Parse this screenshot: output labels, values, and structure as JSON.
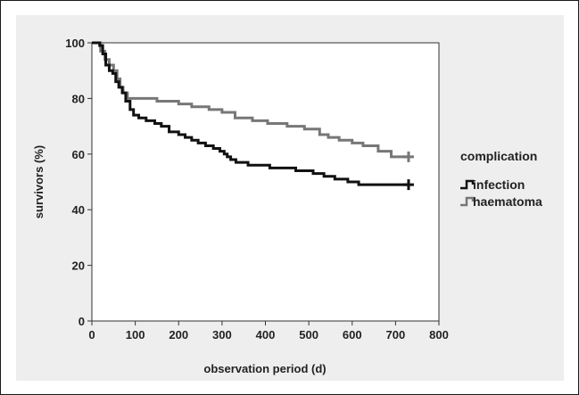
{
  "chart_data": {
    "type": "line",
    "subtype": "kaplan-meier step",
    "title": "",
    "xlabel": "observation period (d)",
    "ylabel": "survivors (%)",
    "xlim": [
      0,
      800
    ],
    "ylim": [
      0,
      100
    ],
    "xticks": [
      "0",
      "100",
      "200",
      "300",
      "400",
      "500",
      "600",
      "700",
      "800"
    ],
    "yticks": [
      "0",
      "20",
      "40",
      "60",
      "80",
      "100"
    ],
    "grid": false,
    "legend": {
      "title": "complication",
      "position": "right"
    },
    "series": [
      {
        "name": "infection",
        "color": "#111111",
        "censor_marker": "plus",
        "points": [
          [
            0,
            100
          ],
          [
            18,
            99
          ],
          [
            25,
            96
          ],
          [
            32,
            92
          ],
          [
            40,
            90
          ],
          [
            48,
            89
          ],
          [
            55,
            86
          ],
          [
            62,
            84
          ],
          [
            70,
            82
          ],
          [
            78,
            79
          ],
          [
            88,
            76
          ],
          [
            96,
            74
          ],
          [
            108,
            73
          ],
          [
            125,
            72
          ],
          [
            145,
            71
          ],
          [
            160,
            70
          ],
          [
            178,
            68
          ],
          [
            200,
            67
          ],
          [
            215,
            66
          ],
          [
            230,
            65
          ],
          [
            245,
            64
          ],
          [
            262,
            63
          ],
          [
            280,
            62
          ],
          [
            295,
            61
          ],
          [
            305,
            60
          ],
          [
            312,
            59
          ],
          [
            320,
            58
          ],
          [
            332,
            57
          ],
          [
            360,
            56
          ],
          [
            410,
            55
          ],
          [
            470,
            54
          ],
          [
            510,
            53
          ],
          [
            535,
            52
          ],
          [
            560,
            51
          ],
          [
            590,
            50
          ],
          [
            615,
            49
          ],
          [
            730,
            49
          ]
        ]
      },
      {
        "name": "haematoma",
        "color": "#777777",
        "censor_marker": "plus",
        "points": [
          [
            0,
            100
          ],
          [
            20,
            97
          ],
          [
            30,
            94
          ],
          [
            40,
            92
          ],
          [
            50,
            90
          ],
          [
            58,
            87
          ],
          [
            65,
            84
          ],
          [
            72,
            82
          ],
          [
            82,
            80
          ],
          [
            110,
            80
          ],
          [
            150,
            79
          ],
          [
            200,
            78
          ],
          [
            230,
            77
          ],
          [
            270,
            76
          ],
          [
            300,
            75
          ],
          [
            330,
            73
          ],
          [
            370,
            72
          ],
          [
            405,
            71
          ],
          [
            450,
            70
          ],
          [
            490,
            69
          ],
          [
            525,
            67
          ],
          [
            545,
            66
          ],
          [
            570,
            65
          ],
          [
            600,
            64
          ],
          [
            625,
            63
          ],
          [
            660,
            61
          ],
          [
            690,
            59
          ],
          [
            730,
            59
          ]
        ]
      }
    ]
  }
}
